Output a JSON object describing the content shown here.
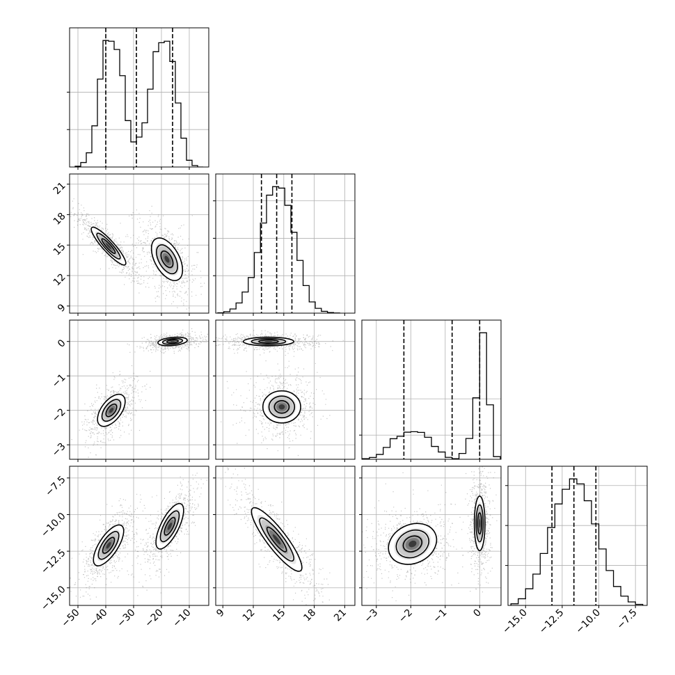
{
  "chart_data": {
    "type": "corner",
    "parameters": 4,
    "axes": [
      {
        "range": [
          -53,
          -3
        ],
        "ticks": [
          -50,
          -40,
          -30,
          -20,
          -10
        ],
        "tick_labels": [
          "−50",
          "−40",
          "−30",
          "−20",
          "−10"
        ]
      },
      {
        "range": [
          8.3,
          22
        ],
        "ticks": [
          9,
          12,
          15,
          18,
          21
        ],
        "tick_labels": [
          "9",
          "12",
          "15",
          "18",
          "21"
        ]
      },
      {
        "range": [
          -3.42,
          0.62
        ],
        "ticks": [
          -3,
          -2,
          -1,
          0
        ],
        "tick_labels": [
          "−3",
          "−2",
          "−1",
          "0"
        ]
      },
      {
        "range": [
          -16.2,
          -6.7
        ],
        "ticks": [
          -15.0,
          -12.5,
          -10.0,
          -7.5
        ],
        "tick_labels": [
          "−15.0",
          "−12.5",
          "−10.0",
          "−7.5"
        ]
      }
    ],
    "histograms": [
      {
        "param": 0,
        "bins": [
          -51,
          -49,
          -47,
          -45,
          -43,
          -41,
          -39,
          -37,
          -35,
          -33,
          -31,
          -29,
          -27,
          -25,
          -23,
          -21,
          -19,
          -17,
          -15,
          -13,
          -11,
          -9,
          -7,
          -5
        ],
        "counts": [
          2,
          12,
          38,
          110,
          235,
          338,
          336,
          314,
          244,
          124,
          67,
          80,
          118,
          208,
          308,
          332,
          336,
          282,
          171,
          77,
          18,
          4,
          0
        ],
        "quantiles": [
          -40,
          -29,
          -16
        ],
        "yticks": [
          100,
          200
        ]
      },
      {
        "param": 1,
        "bins": [
          8.5,
          9.1,
          9.7,
          10.3,
          10.9,
          11.5,
          12.1,
          12.7,
          13.3,
          13.9,
          14.5,
          15.1,
          15.7,
          16.3,
          16.9,
          17.5,
          18.1,
          18.7,
          19.3,
          19.9,
          20.5
        ],
        "counts": [
          2,
          10,
          28,
          68,
          141,
          238,
          405,
          602,
          788,
          845,
          835,
          720,
          540,
          352,
          184,
          75,
          32,
          12,
          4,
          1
        ],
        "quantiles": [
          12.8,
          14.3,
          15.8
        ],
        "yticks": [
          250,
          500,
          750
        ]
      },
      {
        "param": 2,
        "bins": [
          -3.4,
          -3.2,
          -3.0,
          -2.8,
          -2.6,
          -2.4,
          -2.2,
          -2.0,
          -1.8,
          -1.6,
          -1.4,
          -1.2,
          -1.0,
          -0.8,
          -0.6,
          -0.4,
          -0.2,
          0.0,
          0.2,
          0.4,
          0.6
        ],
        "counts": [
          5,
          15,
          40,
          98,
          170,
          190,
          224,
          228,
          222,
          182,
          106,
          60,
          16,
          5,
          48,
          172,
          508,
          1046,
          450,
          22
        ],
        "quantiles": [
          -2.2,
          -0.8,
          0.0
        ],
        "yticks": [
          200,
          500
        ]
      },
      {
        "param": 3,
        "bins": [
          -16.0,
          -15.5,
          -15.0,
          -14.5,
          -14.0,
          -13.5,
          -13.0,
          -12.5,
          -12.0,
          -11.5,
          -11.0,
          -10.5,
          -10.0,
          -9.5,
          -9.0,
          -8.5,
          -8.0,
          -7.5,
          -7.0
        ],
        "counts": [
          12,
          50,
          125,
          235,
          390,
          585,
          762,
          872,
          950,
          912,
          786,
          612,
          424,
          262,
          142,
          70,
          26,
          8
        ],
        "quantiles": [
          -13.2,
          -11.7,
          -10.2
        ],
        "yticks": [
          300,
          600,
          900
        ]
      }
    ],
    "joint_panels": [
      {
        "x": 0,
        "y": 1,
        "modes": [
          {
            "center": [
              -39,
              14.9
            ],
            "sd": [
              4.0,
              1.2
            ],
            "corr": -0.9
          },
          {
            "center": [
              -18,
              13.6
            ],
            "sd": [
              3.6,
              1.35
            ],
            "corr": -0.5
          }
        ]
      },
      {
        "x": 0,
        "y": 2,
        "modes": [
          {
            "center": [
              -38,
              -2.0
            ],
            "sd": [
              3.2,
              0.3
            ],
            "corr": 0.55
          },
          {
            "center": [
              -16,
              0.0
            ],
            "sd": [
              3.4,
              0.08
            ],
            "corr": 0.3
          }
        ]
      },
      {
        "x": 1,
        "y": 2,
        "modes": [
          {
            "center": [
              14.8,
              -1.9
            ],
            "sd": [
              1.2,
              0.3
            ],
            "corr": 0
          },
          {
            "center": [
              13.5,
              0.0
            ],
            "sd": [
              1.6,
              0.08
            ],
            "corr": 0
          }
        ]
      },
      {
        "x": 0,
        "y": 3,
        "modes": [
          {
            "center": [
              -39,
              -12.1
            ],
            "sd": [
              3.5,
              0.9
            ],
            "corr": 0.7
          },
          {
            "center": [
              -17,
              -10.8
            ],
            "sd": [
              3.2,
              1.0
            ],
            "corr": 0.7
          }
        ]
      },
      {
        "x": 1,
        "y": 3,
        "modes": [
          {
            "center": [
              14.3,
              -11.7
            ],
            "sd": [
              1.6,
              1.4
            ],
            "corr": -0.88
          }
        ]
      },
      {
        "x": 2,
        "y": 3,
        "modes": [
          {
            "center": [
              -1.95,
              -12.0
            ],
            "sd": [
              0.45,
              0.9
            ],
            "corr": 0.2
          },
          {
            "center": [
              0.0,
              -10.6
            ],
            "sd": [
              0.1,
              1.2
            ],
            "corr": 0
          }
        ]
      }
    ],
    "title": "",
    "xlabel": "",
    "ylabel": "",
    "grid": true,
    "quantile_line_style": "dashed",
    "contour_levels": 3
  }
}
